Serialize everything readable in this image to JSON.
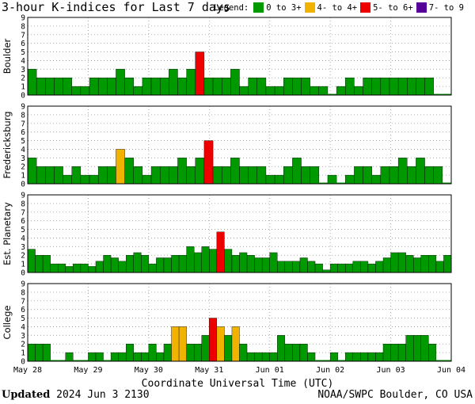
{
  "title": "3-hour K-indices for Last 7 days",
  "legend": {
    "label": "Legend:",
    "items": [
      {
        "text": "0 to 3+",
        "color": "#009900"
      },
      {
        "text": "4- to 4+",
        "color": "#f2b200"
      },
      {
        "text": "5- to 6+",
        "color": "#ee0000"
      },
      {
        "text": "7- to 9",
        "color": "#550099"
      }
    ]
  },
  "chart_data": {
    "type": "bar",
    "xlabel": "Coordinate Universal Time (UTC)",
    "x_tick_labels": [
      "May 28",
      "May 29",
      "May 30",
      "May 31",
      "Jun 01",
      "Jun 02",
      "Jun 03",
      "Jun 04"
    ],
    "ylim": [
      0,
      9
    ],
    "y_ticks": [
      0,
      1,
      2,
      3,
      4,
      5,
      6,
      7,
      8,
      9
    ],
    "bars_per_day": 8,
    "series": [
      {
        "name": "Boulder",
        "values": [
          3,
          2,
          2,
          2,
          2,
          1,
          1,
          2,
          2,
          2,
          3,
          2,
          1,
          2,
          2,
          2,
          3,
          2,
          3,
          5,
          2,
          2,
          2,
          3,
          1,
          2,
          2,
          1,
          1,
          2,
          2,
          2,
          1,
          1,
          0,
          1,
          2,
          1,
          2,
          2,
          2,
          2,
          2,
          2,
          2,
          2,
          0,
          0
        ]
      },
      {
        "name": "Fredericksburg",
        "values": [
          3,
          2,
          2,
          2,
          1,
          2,
          1,
          1,
          2,
          2,
          4,
          3,
          2,
          1,
          2,
          2,
          2,
          3,
          2,
          3,
          5,
          2,
          2,
          3,
          2,
          2,
          2,
          1,
          1,
          2,
          3,
          2,
          2,
          0,
          1,
          0,
          1,
          2,
          2,
          1,
          2,
          2,
          3,
          2,
          3,
          2,
          2,
          0
        ]
      },
      {
        "name": "Est. Planetary",
        "values": [
          2.7,
          2,
          2,
          1,
          1,
          0.7,
          1,
          1,
          0.7,
          1.3,
          2,
          1.7,
          1.3,
          2,
          2.3,
          2,
          1,
          1.7,
          1.7,
          2,
          2,
          3,
          2.3,
          3,
          2.7,
          4.7,
          2.7,
          2,
          2.3,
          2,
          1.7,
          1.7,
          2.3,
          1.3,
          1.3,
          1.3,
          1.7,
          1.3,
          1,
          0.3,
          1,
          1,
          1,
          1.3,
          1.3,
          1,
          1.3,
          1.7,
          2.3,
          2.3,
          2,
          1.7,
          2,
          2,
          1.3,
          2
        ]
      },
      {
        "name": "College",
        "values": [
          2,
          2,
          2,
          0,
          0,
          1,
          0,
          0,
          1,
          1,
          0,
          1,
          1,
          2,
          1,
          1,
          2,
          1,
          2,
          4,
          4,
          2,
          2,
          3,
          5,
          4,
          3,
          4,
          2,
          1,
          1,
          1,
          1,
          3,
          2,
          2,
          2,
          1,
          0,
          0,
          1,
          0,
          1,
          1,
          1,
          1,
          1,
          2,
          2,
          2,
          3,
          3,
          3,
          2,
          0,
          0
        ]
      }
    ]
  },
  "footer": {
    "updated_label": "Updated",
    "updated_value": "2024 Jun  3 2130",
    "source": "NOAA/SWPC Boulder, CO USA"
  }
}
